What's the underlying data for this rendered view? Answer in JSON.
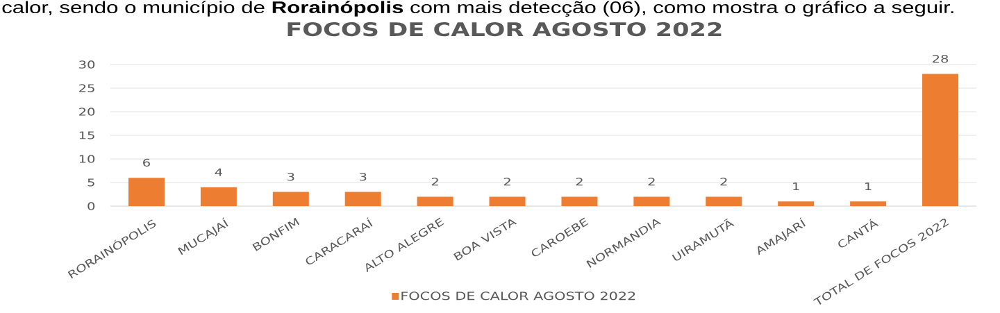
{
  "chart_data": {
    "type": "bar",
    "title": "FOCOS DE CALOR AGOSTO 2022",
    "annotations": [
      "calor, sendo o município de **Rorainópolis** com mais detecção (06), como mostra o gráfico a seguir."
    ],
    "categories": [
      "RORAINÓPOLIS",
      "MUCAJAÍ",
      "BONFIM",
      "CARACARAÍ",
      "ALTO ALEGRE",
      "BOA VISTA",
      "CAROEBE",
      "NORMANDIA",
      "UIRAMUTÃ",
      "AMAJARÍ",
      "CANTÁ",
      "TOTAL DE FOCOS 2022"
    ],
    "series": [
      {
        "name": "FOCOS DE CALOR AGOSTO 2022",
        "color": "#ed7d31",
        "values": [
          6,
          4,
          3,
          3,
          2,
          2,
          2,
          2,
          2,
          1,
          1,
          28
        ]
      }
    ],
    "ylim": [
      0,
      30
    ],
    "yticks": [
      0,
      5,
      10,
      15,
      20,
      25,
      30
    ],
    "grid": "y",
    "legend": "bottom",
    "data_labels": true
  }
}
